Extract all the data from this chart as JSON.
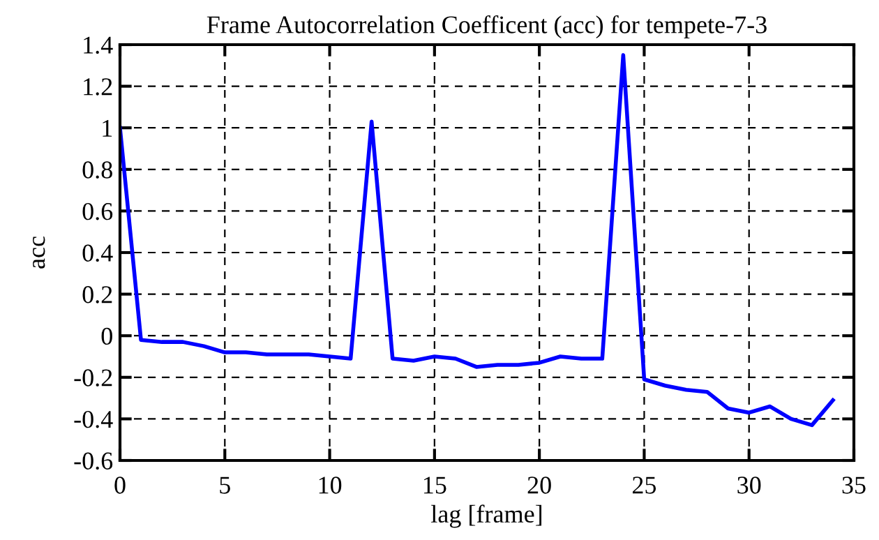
{
  "chart_data": {
    "type": "line",
    "title": "Frame Autocorrelation Coefficent (acc) for tempete-7-3",
    "xlabel": "lag [frame]",
    "ylabel": "acc",
    "x": [
      0,
      1,
      2,
      3,
      4,
      5,
      6,
      7,
      8,
      9,
      10,
      11,
      12,
      13,
      14,
      15,
      16,
      17,
      18,
      19,
      20,
      21,
      22,
      23,
      24,
      25,
      26,
      27,
      28,
      29,
      30,
      31,
      32,
      33,
      34
    ],
    "series": [
      {
        "color": "#0000ff",
        "values": [
          1.0,
          -0.02,
          -0.03,
          -0.03,
          -0.05,
          -0.08,
          -0.08,
          -0.09,
          -0.09,
          -0.09,
          -0.1,
          -0.11,
          1.03,
          -0.11,
          -0.12,
          -0.1,
          -0.11,
          -0.15,
          -0.14,
          -0.14,
          -0.13,
          -0.1,
          -0.11,
          -0.11,
          1.35,
          -0.21,
          -0.24,
          -0.26,
          -0.27,
          -0.35,
          -0.37,
          -0.34,
          -0.4,
          -0.43,
          -0.31
        ]
      }
    ],
    "xlim": [
      0,
      35
    ],
    "xticks": [
      0,
      5,
      10,
      15,
      20,
      25,
      30,
      35
    ],
    "ylim": [
      -0.6,
      1.4
    ],
    "yticks": [
      -0.6,
      -0.4,
      -0.2,
      0,
      0.2,
      0.4,
      0.6,
      0.8,
      1,
      1.2,
      1.4
    ],
    "grid": true,
    "marker": "none",
    "line_style": "solid"
  }
}
